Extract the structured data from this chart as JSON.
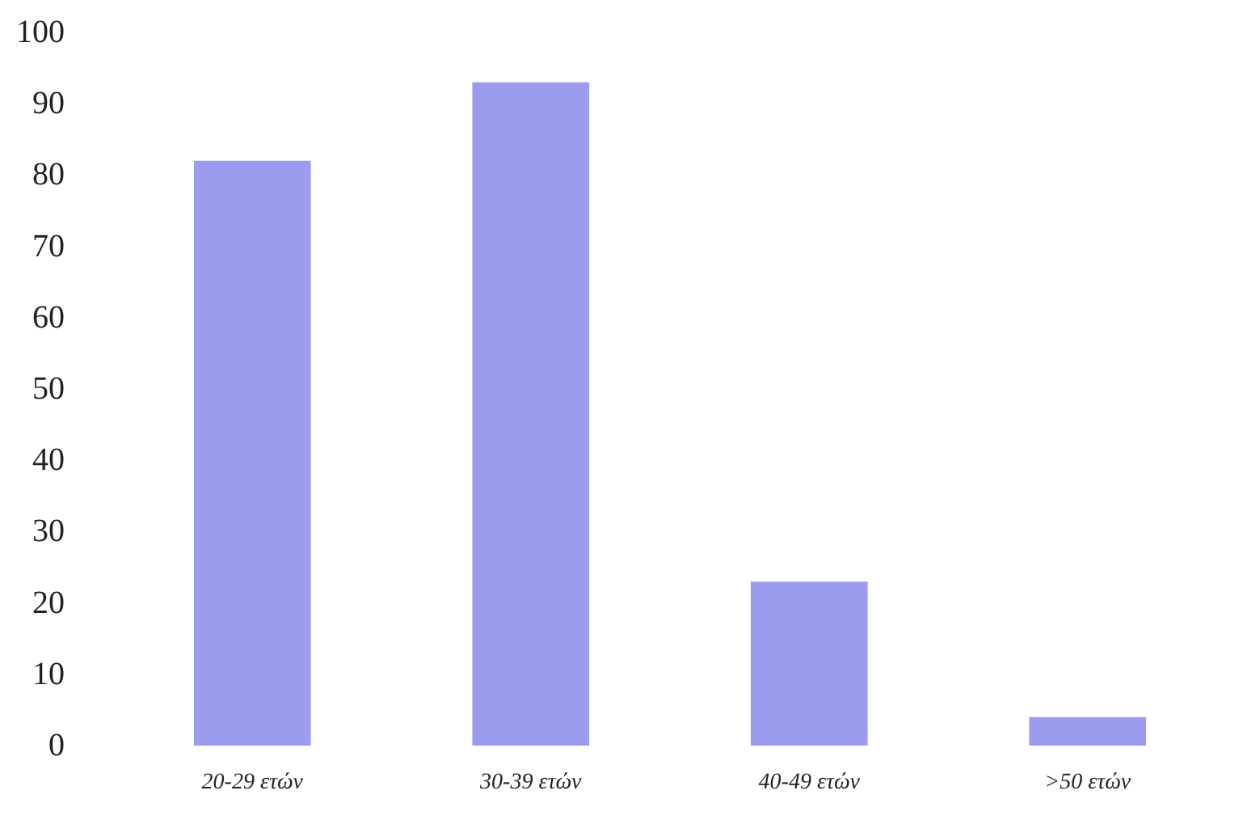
{
  "chart_data": {
    "type": "bar",
    "categories": [
      "20-29 ετών",
      "30-39 ετών",
      "40-49 ετών",
      ">50 ετών"
    ],
    "values": [
      82,
      93,
      23,
      4
    ],
    "color": "#9b9ced",
    "ylim": [
      0,
      100
    ],
    "yticks": [
      0,
      10,
      20,
      30,
      40,
      50,
      60,
      70,
      80,
      90,
      100
    ],
    "grid": false
  }
}
